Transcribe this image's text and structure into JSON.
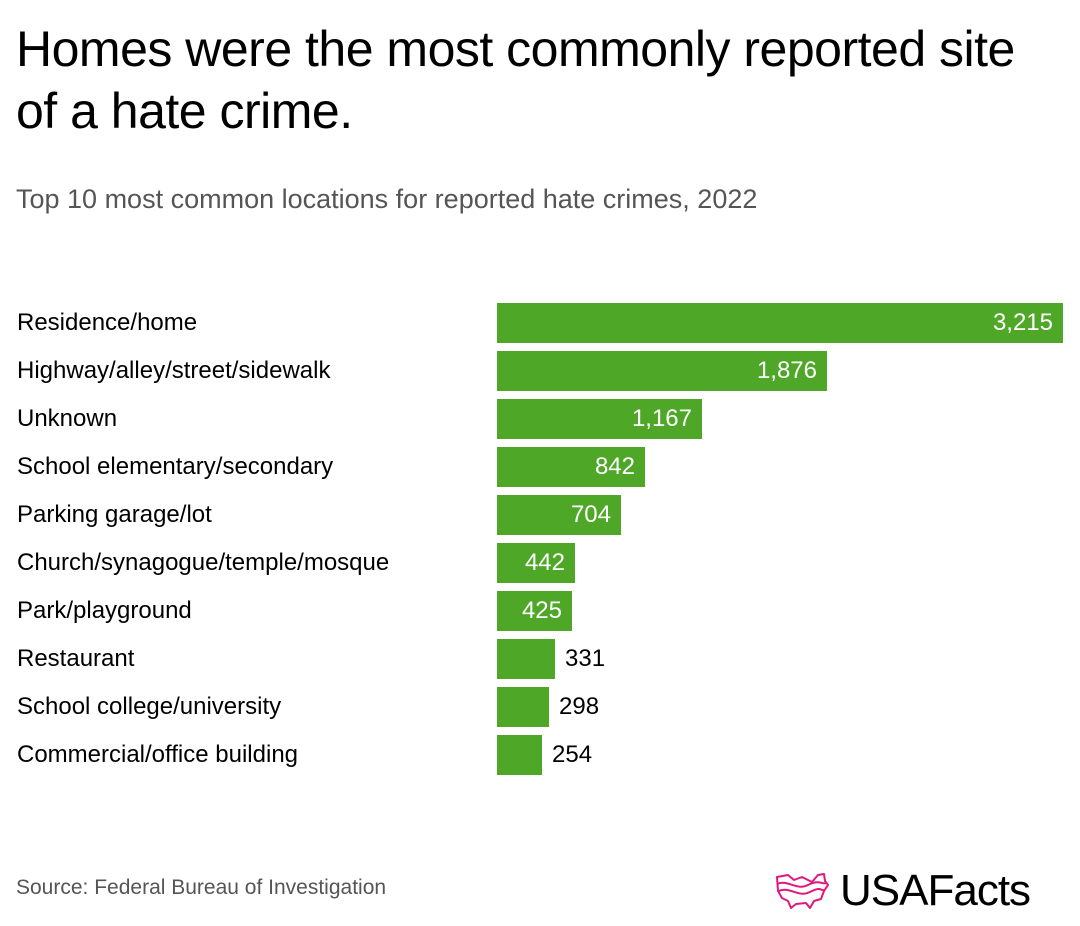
{
  "header": {
    "title": "Homes were the most commonly reported site of a hate crime.",
    "subtitle": "Top 10 most common locations for reported hate crimes, 2022"
  },
  "footer": {
    "source": "Source: Federal Bureau of Investigation",
    "logo_text": "USAFacts",
    "logo_color": "#e0197d"
  },
  "colors": {
    "bar": "#4fa728"
  },
  "chart_data": {
    "type": "bar",
    "orientation": "horizontal",
    "title": "Homes were the most commonly reported site of a hate crime.",
    "subtitle": "Top 10 most common locations for reported hate crimes, 2022",
    "xlabel": "",
    "ylabel": "",
    "grid": false,
    "legend": null,
    "categories": [
      "Residence/home",
      "Highway/alley/street/sidewalk",
      "Unknown",
      "School elementary/secondary",
      "Parking garage/lot",
      "Church/synagogue/temple/mosque",
      "Park/playground",
      "Restaurant",
      "School college/university",
      "Commercial/office building"
    ],
    "values": [
      3215,
      1876,
      1167,
      842,
      704,
      442,
      425,
      331,
      298,
      254
    ],
    "value_labels": [
      "3,215",
      "1,876",
      "1,167",
      "842",
      "704",
      "442",
      "425",
      "331",
      "298",
      "254"
    ],
    "source": "Federal Bureau of Investigation"
  }
}
